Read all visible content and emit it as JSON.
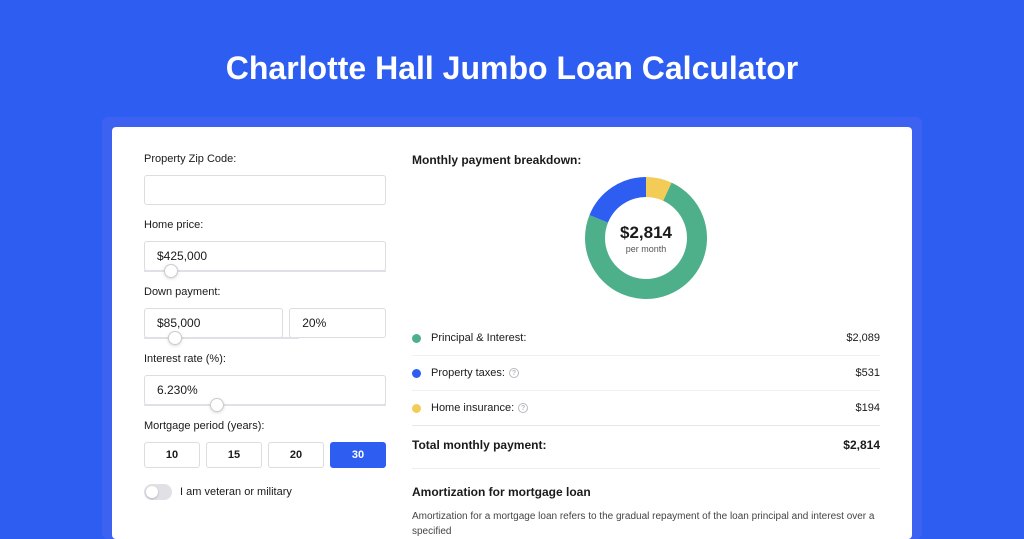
{
  "page": {
    "title": "Charlotte Hall Jumbo Loan Calculator",
    "background_color": "#2e5ef1",
    "card_accent_color": "#3d62f2"
  },
  "form": {
    "zip_label": "Property Zip Code:",
    "zip_value": "",
    "home_price_label": "Home price:",
    "home_price_value": "$425,000",
    "home_price_slider_pct": 11,
    "down_payment_label": "Down payment:",
    "down_payment_value": "$85,000",
    "down_payment_pct": "20%",
    "down_payment_slider_pct": 20,
    "interest_label": "Interest rate (%):",
    "interest_value": "6.230%",
    "interest_slider_pct": 30,
    "period_label": "Mortgage period (years):",
    "period_options": [
      "10",
      "15",
      "20",
      "30"
    ],
    "period_selected": "30",
    "veteran_label": "I am veteran or military",
    "veteran_on": false
  },
  "breakdown": {
    "title": "Monthly payment breakdown:",
    "donut": {
      "amount": "$2,814",
      "sub": "per month",
      "slices": [
        {
          "label": "Principal & Interest:",
          "value": "$2,089",
          "pct": 74.24,
          "color": "#4eb08b"
        },
        {
          "label": "Property taxes:",
          "value": "$531",
          "pct": 18.87,
          "color": "#2e5ef1",
          "info": true
        },
        {
          "label": "Home insurance:",
          "value": "$194",
          "pct": 6.89,
          "color": "#f2cc57",
          "info": true
        }
      ],
      "ring_width": 20
    },
    "total_label": "Total monthly payment:",
    "total_value": "$2,814"
  },
  "amortization": {
    "title": "Amortization for mortgage loan",
    "text": "Amortization for a mortgage loan refers to the gradual repayment of the loan principal and interest over a specified"
  }
}
